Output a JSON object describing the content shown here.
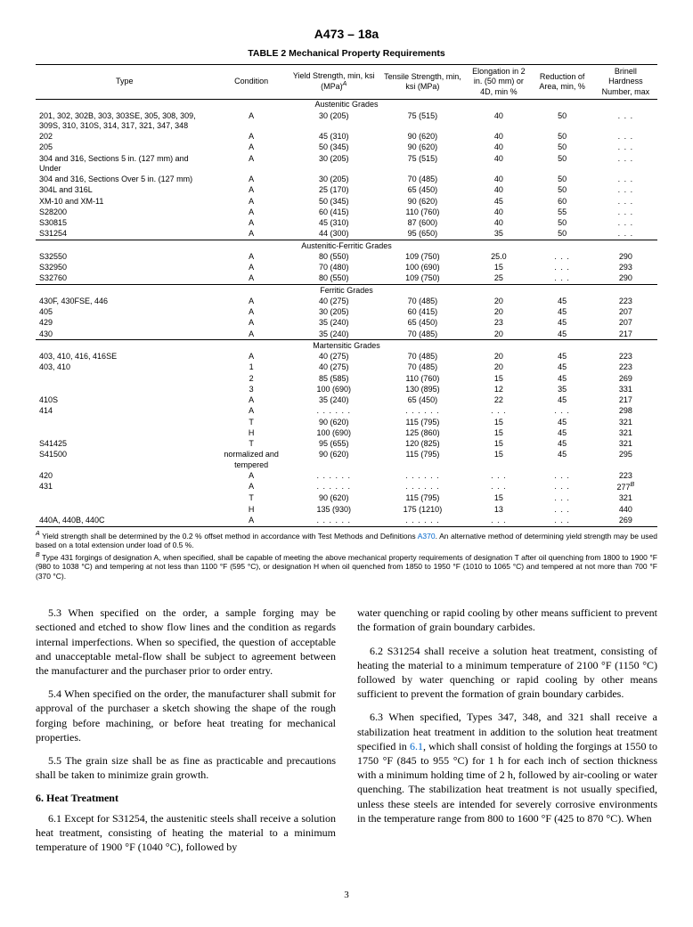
{
  "doc_header": "A473 – 18a",
  "table_title": "TABLE 2 Mechanical Property Requirements",
  "columns": {
    "type": "Type",
    "condition": "Condition",
    "yield": "Yield Strength, min, ksi (MPa)",
    "yield_sup": "A",
    "tensile": "Tensile Strength, min, ksi (MPa)",
    "elong": "Elongation in 2 in. (50 mm) or 4D, min %",
    "reduction": "Reduction of Area, min, %",
    "brinell": "Brinell Hardness Number, max"
  },
  "sections": [
    {
      "label": "Austenitic Grades",
      "rows": [
        {
          "type": "201, 302, 302B, 303, 303SE, 305, 308, 309, 309S, 310, 310S, 314, 317, 321, 347, 348",
          "cond": "A",
          "yield": "30 (205)",
          "tensile": "75 (515)",
          "elong": "40",
          "red": "50",
          "bhn": ". . ."
        },
        {
          "type": "202",
          "cond": "A",
          "yield": "45 (310)",
          "tensile": "90 (620)",
          "elong": "40",
          "red": "50",
          "bhn": ". . ."
        },
        {
          "type": "205",
          "cond": "A",
          "yield": "50 (345)",
          "tensile": "90 (620)",
          "elong": "40",
          "red": "50",
          "bhn": ". . ."
        },
        {
          "type": "304 and 316, Sections 5 in. (127 mm) and Under",
          "cond": "A",
          "yield": "30 (205)",
          "tensile": "75 (515)",
          "elong": "40",
          "red": "50",
          "bhn": ". . ."
        },
        {
          "type": "304 and 316, Sections Over 5 in. (127 mm)",
          "cond": "A",
          "yield": "30 (205)",
          "tensile": "70 (485)",
          "elong": "40",
          "red": "50",
          "bhn": ". . ."
        },
        {
          "type": "304L and 316L",
          "cond": "A",
          "yield": "25 (170)",
          "tensile": "65 (450)",
          "elong": "40",
          "red": "50",
          "bhn": ". . ."
        },
        {
          "type": "XM-10 and XM-11",
          "cond": "A",
          "yield": "50 (345)",
          "tensile": "90 (620)",
          "elong": "45",
          "red": "60",
          "bhn": ". . ."
        },
        {
          "type": "S28200",
          "cond": "A",
          "yield": "60 (415)",
          "tensile": "110 (760)",
          "elong": "40",
          "red": "55",
          "bhn": ". . ."
        },
        {
          "type": "S30815",
          "cond": "A",
          "yield": "45 (310)",
          "tensile": "87 (600)",
          "elong": "40",
          "red": "50",
          "bhn": ". . ."
        },
        {
          "type": "S31254",
          "cond": "A",
          "yield": "44 (300)",
          "tensile": "95 (650)",
          "elong": "35",
          "red": "50",
          "bhn": ". . ."
        }
      ]
    },
    {
      "label": "Austenitic-Ferritic Grades",
      "rows": [
        {
          "type": "S32550",
          "cond": "A",
          "yield": "80 (550)",
          "tensile": "109 (750)",
          "elong": "25.0",
          "red": ". . .",
          "bhn": "290"
        },
        {
          "type": "S32950",
          "cond": "A",
          "yield": "70 (480)",
          "tensile": "100 (690)",
          "elong": "15",
          "red": ". . .",
          "bhn": "293"
        },
        {
          "type": "S32760",
          "cond": "A",
          "yield": "80 (550)",
          "tensile": "109 (750)",
          "elong": "25",
          "red": ". . .",
          "bhn": "290"
        }
      ]
    },
    {
      "label": "Ferritic Grades",
      "rows": [
        {
          "type": "430F, 430FSE, 446",
          "cond": "A",
          "yield": "40 (275)",
          "tensile": "70 (485)",
          "elong": "20",
          "red": "45",
          "bhn": "223"
        },
        {
          "type": "405",
          "cond": "A",
          "yield": "30 (205)",
          "tensile": "60 (415)",
          "elong": "20",
          "red": "45",
          "bhn": "207"
        },
        {
          "type": "429",
          "cond": "A",
          "yield": "35 (240)",
          "tensile": "65 (450)",
          "elong": "23",
          "red": "45",
          "bhn": "207"
        },
        {
          "type": "430",
          "cond": "A",
          "yield": "35 (240)",
          "tensile": "70 (485)",
          "elong": "20",
          "red": "45",
          "bhn": "217"
        }
      ]
    },
    {
      "label": "Martensitic Grades",
      "rows": [
        {
          "type": "403, 410, 416, 416SE",
          "cond": "A",
          "yield": "40 (275)",
          "tensile": "70 (485)",
          "elong": "20",
          "red": "45",
          "bhn": "223"
        },
        {
          "type": "403, 410",
          "cond": "1",
          "yield": "40 (275)",
          "tensile": "70 (485)",
          "elong": "20",
          "red": "45",
          "bhn": "223"
        },
        {
          "type": "",
          "cond": "2",
          "yield": "85 (585)",
          "tensile": "110 (760)",
          "elong": "15",
          "red": "45",
          "bhn": "269"
        },
        {
          "type": "",
          "cond": "3",
          "yield": "100 (690)",
          "tensile": "130 (895)",
          "elong": "12",
          "red": "35",
          "bhn": "331"
        },
        {
          "type": "410S",
          "cond": "A",
          "yield": "35 (240)",
          "tensile": "65 (450)",
          "elong": "22",
          "red": "45",
          "bhn": "217"
        },
        {
          "type": "414",
          "cond": "A",
          "yield": ". . .    . . .",
          "tensile": ". . .    . . .",
          "elong": ". . .",
          "red": ". . .",
          "bhn": "298"
        },
        {
          "type": "",
          "cond": "T",
          "yield": "90 (620)",
          "tensile": "115 (795)",
          "elong": "15",
          "red": "45",
          "bhn": "321"
        },
        {
          "type": "",
          "cond": "H",
          "yield": "100 (690)",
          "tensile": "125 (860)",
          "elong": "15",
          "red": "45",
          "bhn": "321"
        },
        {
          "type": "S41425",
          "cond": "T",
          "yield": "95 (655)",
          "tensile": "120 (825)",
          "elong": "15",
          "red": "45",
          "bhn": "321"
        },
        {
          "type": "S41500",
          "cond": "normalized and tempered",
          "yield": "90 (620)",
          "tensile": "115 (795)",
          "elong": "15",
          "red": "45",
          "bhn": "295"
        },
        {
          "type": "420",
          "cond": "A",
          "yield": ". . .    . . .",
          "tensile": ". . .    . . .",
          "elong": ". . .",
          "red": ". . .",
          "bhn": "223"
        },
        {
          "type": "431",
          "cond": "A",
          "yield": ". . .    . . .",
          "tensile": ". . .    . . .",
          "elong": ". . .",
          "red": ". . .",
          "bhn": "277",
          "bhn_sup": "B"
        },
        {
          "type": "",
          "cond": "T",
          "yield": "90 (620)",
          "tensile": "115 (795)",
          "elong": "15",
          "red": ". . .",
          "bhn": "321"
        },
        {
          "type": "",
          "cond": "H",
          "yield": "135 (930)",
          "tensile": "175 (1210)",
          "elong": "13",
          "red": ". . .",
          "bhn": "440"
        },
        {
          "type": "440A, 440B, 440C",
          "cond": "A",
          "yield": ". . .    . . .",
          "tensile": ". . .    . . .",
          "elong": ". . .",
          "red": ". . .",
          "bhn": "269"
        }
      ]
    }
  ],
  "footnotes": {
    "A_pre": "Yield strength shall be determined by the 0.2 % offset method in accordance with Test Methods and Definitions ",
    "A_link": "A370",
    "A_post": ". An alternative method of determining yield strength may be used based on a total extension under load of 0.5 %.",
    "B": "Type 431 forgings of designation A, when specified, shall be capable of meeting the above mechanical property requirements of designation T after oil quenching from 1800 to 1900 °F (980 to 1038 °C) and tempering at not less than 1100 °F (595 °C), or designation H when oil quenched from 1850 to 1950 °F (1010 to 1065 °C) and tempered at not more than 700 °F (370 °C)."
  },
  "body": {
    "p1": "5.3 When specified on the order, a sample forging may be sectioned and etched to show flow lines and the condition as regards internal imperfections. When so specified, the question of acceptable and unacceptable metal-flow shall be subject to agreement between the manufacturer and the purchaser prior to order entry.",
    "p2": "5.4 When specified on the order, the manufacturer shall submit for approval of the purchaser a sketch showing the shape of the rough forging before machining, or before heat treating for mechanical properties.",
    "p3": "5.5 The grain size shall be as fine as practicable and precautions shall be taken to minimize grain growth.",
    "h6": "6. Heat Treatment",
    "p4": "6.1 Except for S31254, the austenitic steels shall receive a solution heat treatment, consisting of heating the material to a minimum temperature of 1900 °F (1040 °C), followed by",
    "p5": "water quenching or rapid cooling by other means sufficient to prevent the formation of grain boundary carbides.",
    "p6": "6.2 S31254 shall receive a solution heat treatment, consisting of heating the material to a minimum temperature of 2100 °F (1150 °C) followed by water quenching or rapid cooling by other means sufficient to prevent the formation of grain boundary carbides.",
    "p7a": "6.3 When specified, Types 347, 348, and 321 shall receive a stabilization heat treatment in addition to the solution heat treatment specified in ",
    "p7link": "6.1",
    "p7b": ", which shall consist of holding the forgings at 1550 to 1750 °F (845 to 955 °C) for 1 h for each inch of section thickness with a minimum holding time of 2 h, followed by air-cooling or water quenching. The stabilization heat treatment is not usually specified, unless these steels are intended for severely corrosive environments in the temperature range from 800 to 1600 °F (425 to 870 °C). When"
  },
  "page_number": "3"
}
